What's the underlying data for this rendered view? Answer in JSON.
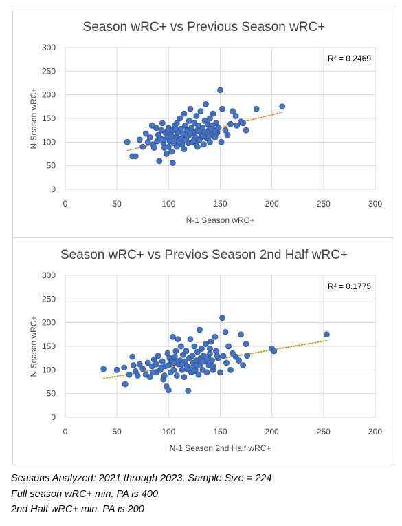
{
  "chart_data": [
    {
      "type": "scatter",
      "title": "Season wRC+ vs Previous Season wRC+",
      "xlabel": "N-1 Season wRC+",
      "ylabel": "N Season wRC+",
      "xlim": [
        0,
        300
      ],
      "ylim": [
        0,
        300
      ],
      "x_ticks": [
        0,
        50,
        100,
        150,
        200,
        250,
        300
      ],
      "y_ticks": [
        0,
        50,
        100,
        150,
        200,
        250,
        300
      ],
      "grid": true,
      "r2_label": "R² = 0.2469",
      "trendline": {
        "style": "dotted",
        "color": "#ed7d31",
        "x": [
          60,
          210
        ],
        "y": [
          82,
          163
        ]
      },
      "point_color": "#4472c4",
      "points": [
        [
          60,
          100
        ],
        [
          65,
          70
        ],
        [
          68,
          70
        ],
        [
          72,
          105
        ],
        [
          75,
          90
        ],
        [
          78,
          118
        ],
        [
          80,
          100
        ],
        [
          82,
          110
        ],
        [
          84,
          135
        ],
        [
          85,
          95
        ],
        [
          86,
          88
        ],
        [
          88,
          130
        ],
        [
          89,
          102
        ],
        [
          90,
          115
        ],
        [
          91,
          60
        ],
        [
          92,
          108
        ],
        [
          93,
          125
        ],
        [
          94,
          140
        ],
        [
          95,
          98
        ],
        [
          96,
          88
        ],
        [
          97,
          120
        ],
        [
          98,
          75
        ],
        [
          99,
          110
        ],
        [
          100,
          90
        ],
        [
          100,
          130
        ],
        [
          101,
          102
        ],
        [
          102,
          118
        ],
        [
          103,
          80
        ],
        [
          104,
          125
        ],
        [
          104,
          56
        ],
        [
          105,
          98
        ],
        [
          106,
          135
        ],
        [
          107,
          110
        ],
        [
          108,
          90
        ],
        [
          108,
          140
        ],
        [
          109,
          120
        ],
        [
          110,
          105
        ],
        [
          111,
          150
        ],
        [
          112,
          128
        ],
        [
          113,
          95
        ],
        [
          114,
          118
        ],
        [
          115,
          160
        ],
        [
          115,
          85
        ],
        [
          116,
          135
        ],
        [
          117,
          108
        ],
        [
          118,
          125
        ],
        [
          119,
          98
        ],
        [
          120,
          145
        ],
        [
          120,
          115
        ],
        [
          121,
          170
        ],
        [
          122,
          130
        ],
        [
          123,
          100
        ],
        [
          124,
          120
        ],
        [
          125,
          140
        ],
        [
          126,
          110
        ],
        [
          127,
          155
        ],
        [
          128,
          90
        ],
        [
          128,
          125
        ],
        [
          129,
          135
        ],
        [
          130,
          105
        ],
        [
          131,
          165
        ],
        [
          132,
          115
        ],
        [
          133,
          130
        ],
        [
          134,
          95
        ],
        [
          135,
          145
        ],
        [
          135,
          120
        ],
        [
          136,
          180
        ],
        [
          137,
          108
        ],
        [
          138,
          138
        ],
        [
          139,
          125
        ],
        [
          140,
          150
        ],
        [
          140,
          100
        ],
        [
          141,
          115
        ],
        [
          142,
          135
        ],
        [
          143,
          160
        ],
        [
          144,
          125
        ],
        [
          145,
          110
        ],
        [
          146,
          140
        ],
        [
          147,
          120
        ],
        [
          148,
          130
        ],
        [
          150,
          210
        ],
        [
          151,
          100
        ],
        [
          152,
          170
        ],
        [
          155,
          125
        ],
        [
          157,
          115
        ],
        [
          160,
          138
        ],
        [
          162,
          165
        ],
        [
          165,
          155
        ],
        [
          166,
          135
        ],
        [
          170,
          143
        ],
        [
          172,
          140
        ],
        [
          175,
          125
        ],
        [
          185,
          170
        ],
        [
          210,
          175
        ],
        [
          95,
          105
        ],
        [
          110,
          100
        ],
        [
          118,
          112
        ],
        [
          126,
          98
        ],
        [
          133,
          112
        ],
        [
          141,
          128
        ],
        [
          103,
          112
        ],
        [
          112,
          108
        ],
        [
          121,
          118
        ],
        [
          130,
          122
        ],
        [
          99,
          124
        ],
        [
          107,
          128
        ],
        [
          116,
          104
        ],
        [
          124,
          102
        ],
        [
          139,
          112
        ],
        [
          145,
          122
        ]
      ]
    },
    {
      "type": "scatter",
      "title": "Season wRC+ vs Previos Season 2nd Half wRC+",
      "xlabel": "N-1 Season 2nd Half wRC+",
      "ylabel": "N Season wRC+",
      "xlim": [
        0,
        300
      ],
      "ylim": [
        0,
        300
      ],
      "x_ticks": [
        0,
        50,
        100,
        150,
        200,
        250,
        300
      ],
      "y_ticks": [
        0,
        50,
        100,
        150,
        200,
        250,
        300
      ],
      "grid": true,
      "r2_label": "R² = 0.1775",
      "trendline": {
        "style": "dotted",
        "color": "#bf9000",
        "x": [
          37,
          253
        ],
        "y": [
          82,
          162
        ]
      },
      "point_color": "#4472c4",
      "points": [
        [
          37,
          102
        ],
        [
          50,
          100
        ],
        [
          57,
          105
        ],
        [
          58,
          70
        ],
        [
          62,
          90
        ],
        [
          65,
          128
        ],
        [
          66,
          110
        ],
        [
          68,
          97
        ],
        [
          70,
          88
        ],
        [
          72,
          112
        ],
        [
          75,
          102
        ],
        [
          78,
          90
        ],
        [
          80,
          115
        ],
        [
          82,
          85
        ],
        [
          84,
          108
        ],
        [
          86,
          122
        ],
        [
          88,
          95
        ],
        [
          90,
          130
        ],
        [
          92,
          100
        ],
        [
          94,
          118
        ],
        [
          95,
          80
        ],
        [
          96,
          88
        ],
        [
          98,
          65
        ],
        [
          99,
          135
        ],
        [
          100,
          57
        ],
        [
          100,
          110
        ],
        [
          101,
          125
        ],
        [
          102,
          95
        ],
        [
          103,
          118
        ],
        [
          104,
          170
        ],
        [
          105,
          100
        ],
        [
          106,
          128
        ],
        [
          107,
          140
        ],
        [
          108,
          88
        ],
        [
          109,
          165
        ],
        [
          110,
          112
        ],
        [
          111,
          120
        ],
        [
          112,
          150
        ],
        [
          113,
          100
        ],
        [
          114,
          132
        ],
        [
          115,
          85
        ],
        [
          116,
          118
        ],
        [
          117,
          140
        ],
        [
          118,
          108
        ],
        [
          119,
          56
        ],
        [
          120,
          125
        ],
        [
          121,
          165
        ],
        [
          122,
          95
        ],
        [
          123,
          130
        ],
        [
          124,
          115
        ],
        [
          125,
          150
        ],
        [
          126,
          100
        ],
        [
          127,
          120
        ],
        [
          128,
          138
        ],
        [
          129,
          90
        ],
        [
          130,
          185
        ],
        [
          130,
          110
        ],
        [
          131,
          125
        ],
        [
          132,
          145
        ],
        [
          133,
          100
        ],
        [
          134,
          130
        ],
        [
          135,
          118
        ],
        [
          136,
          155
        ],
        [
          137,
          95
        ],
        [
          138,
          128
        ],
        [
          139,
          110
        ],
        [
          140,
          135
        ],
        [
          141,
          160
        ],
        [
          142,
          120
        ],
        [
          143,
          100
        ],
        [
          145,
          170
        ],
        [
          146,
          140
        ],
        [
          148,
          125
        ],
        [
          150,
          95
        ],
        [
          152,
          210
        ],
        [
          153,
          130
        ],
        [
          155,
          180
        ],
        [
          156,
          115
        ],
        [
          158,
          150
        ],
        [
          160,
          100
        ],
        [
          162,
          135
        ],
        [
          165,
          128
        ],
        [
          168,
          120
        ],
        [
          170,
          175
        ],
        [
          172,
          110
        ],
        [
          175,
          155
        ],
        [
          176,
          130
        ],
        [
          200,
          145
        ],
        [
          202,
          140
        ],
        [
          253,
          175
        ],
        [
          85,
          95
        ],
        [
          97,
          108
        ],
        [
          108,
          118
        ],
        [
          118,
          102
        ],
        [
          127,
          110
        ],
        [
          137,
          122
        ],
        [
          147,
          130
        ],
        [
          93,
          105
        ],
        [
          113,
          112
        ],
        [
          123,
          105
        ],
        [
          133,
          118
        ],
        [
          143,
          108
        ],
        [
          105,
          115
        ],
        [
          125,
          98
        ],
        [
          140,
          145
        ],
        [
          88,
          112
        ]
      ]
    }
  ],
  "notes": {
    "line1": "Seasons Analyzed: 2021 through 2023, Sample Size = 224",
    "line2": "Full season wRC+ min. PA is 400",
    "line3": "2nd Half wRC+ min. PA is 200"
  }
}
